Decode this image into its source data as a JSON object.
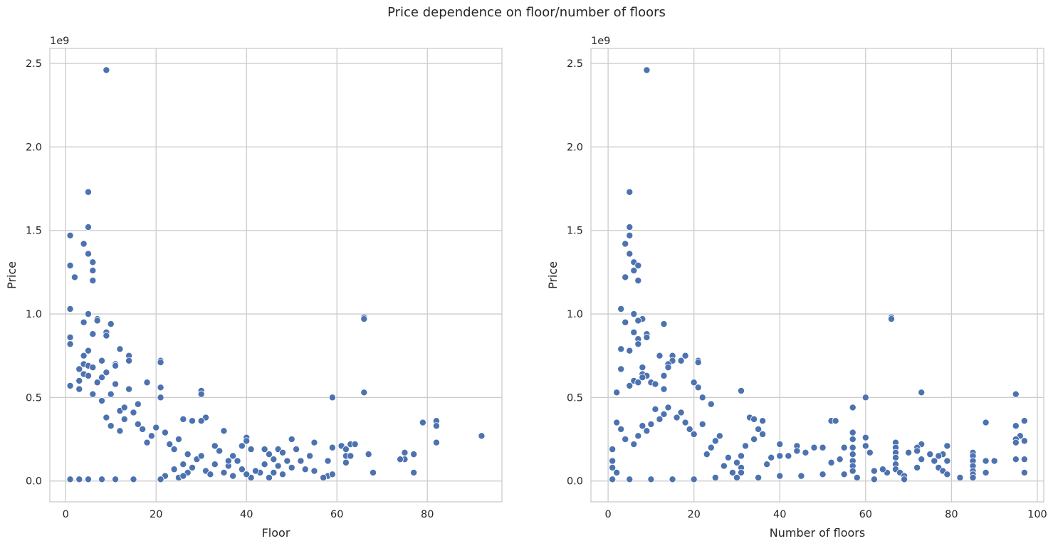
{
  "figure": {
    "title": "Price dependence on floor/number of floors"
  },
  "style": {
    "marker_color": "#4c72b0",
    "marker_edge": "#ffffff",
    "grid_color": "#cccccc",
    "axes_edge": "#cccccc"
  },
  "chart_data": [
    {
      "type": "scatter",
      "xlabel": "Floor",
      "ylabel": "Price",
      "y_offset_label": "1e9",
      "xlim": [
        -3.5,
        96.5
      ],
      "ylim": [
        -0.125,
        2.59
      ],
      "xticks": [
        0,
        20,
        40,
        60,
        80
      ],
      "xtick_labels": [
        "0",
        "20",
        "40",
        "60",
        "80"
      ],
      "yticks": [
        0,
        0.5,
        1.0,
        1.5,
        2.0,
        2.5
      ],
      "ytick_labels": [
        "0.0",
        "0.5",
        "1.0",
        "1.5",
        "2.0",
        "2.5"
      ],
      "grid": true,
      "points": [
        [
          9,
          2.46
        ],
        [
          5,
          1.73
        ],
        [
          5,
          1.52
        ],
        [
          1,
          1.47
        ],
        [
          4,
          1.42
        ],
        [
          5,
          1.36
        ],
        [
          6,
          1.31
        ],
        [
          1,
          1.29
        ],
        [
          6,
          1.26
        ],
        [
          2,
          1.22
        ],
        [
          6,
          1.2
        ],
        [
          1,
          1.03
        ],
        [
          5,
          1.0
        ],
        [
          7,
          0.97
        ],
        [
          7,
          0.96
        ],
        [
          4,
          0.95
        ],
        [
          10,
          0.94
        ],
        [
          9,
          0.89
        ],
        [
          6,
          0.88
        ],
        [
          1,
          0.86
        ],
        [
          9,
          0.87
        ],
        [
          1,
          0.82
        ],
        [
          12,
          0.79
        ],
        [
          5,
          0.78
        ],
        [
          4,
          0.75
        ],
        [
          14,
          0.75
        ],
        [
          14,
          0.72
        ],
        [
          21,
          0.72
        ],
        [
          21,
          0.71
        ],
        [
          8,
          0.72
        ],
        [
          4,
          0.7
        ],
        [
          11,
          0.7
        ],
        [
          11,
          0.69
        ],
        [
          5,
          0.69
        ],
        [
          6,
          0.68
        ],
        [
          3,
          0.67
        ],
        [
          4,
          0.64
        ],
        [
          9,
          0.65
        ],
        [
          5,
          0.63
        ],
        [
          8,
          0.62
        ],
        [
          3,
          0.6
        ],
        [
          7,
          0.59
        ],
        [
          18,
          0.59
        ],
        [
          1,
          0.57
        ],
        [
          11,
          0.58
        ],
        [
          14,
          0.55
        ],
        [
          21,
          0.56
        ],
        [
          30,
          0.54
        ],
        [
          30,
          0.52
        ],
        [
          3,
          0.55
        ],
        [
          6,
          0.52
        ],
        [
          10,
          0.52
        ],
        [
          21,
          0.5
        ],
        [
          59,
          0.5
        ],
        [
          66,
          0.98
        ],
        [
          66,
          0.97
        ],
        [
          66,
          0.53
        ],
        [
          8,
          0.48
        ],
        [
          12,
          0.42
        ],
        [
          16,
          0.46
        ],
        [
          13,
          0.44
        ],
        [
          15,
          0.41
        ],
        [
          31,
          0.38
        ],
        [
          26,
          0.37
        ],
        [
          28,
          0.36
        ],
        [
          30,
          0.36
        ],
        [
          79,
          0.35
        ],
        [
          82,
          0.36
        ],
        [
          82,
          0.33
        ],
        [
          35,
          0.3
        ],
        [
          92,
          0.27
        ],
        [
          40,
          0.26
        ],
        [
          40,
          0.24
        ],
        [
          50,
          0.25
        ],
        [
          55,
          0.23
        ],
        [
          82,
          0.23
        ],
        [
          63,
          0.22
        ],
        [
          64,
          0.22
        ],
        [
          61,
          0.21
        ],
        [
          59,
          0.2
        ],
        [
          62,
          0.19
        ],
        [
          47,
          0.19
        ],
        [
          44,
          0.19
        ],
        [
          39,
          0.21
        ],
        [
          41,
          0.19
        ],
        [
          51,
          0.19
        ],
        [
          75,
          0.17
        ],
        [
          75,
          0.13
        ],
        [
          77,
          0.16
        ],
        [
          67,
          0.16
        ],
        [
          62,
          0.15
        ],
        [
          63,
          0.15
        ],
        [
          54,
          0.15
        ],
        [
          45,
          0.16
        ],
        [
          48,
          0.17
        ],
        [
          46,
          0.13
        ],
        [
          52,
          0.12
        ],
        [
          58,
          0.12
        ],
        [
          74,
          0.13
        ],
        [
          62,
          0.11
        ],
        [
          68,
          0.05
        ],
        [
          77,
          0.05
        ],
        [
          58,
          0.03
        ],
        [
          59,
          0.04
        ],
        [
          55,
          0.06
        ],
        [
          53,
          0.07
        ],
        [
          50,
          0.08
        ],
        [
          47,
          0.09
        ],
        [
          44,
          0.1
        ],
        [
          49,
          0.12
        ],
        [
          57,
          0.02
        ],
        [
          43,
          0.05
        ],
        [
          46,
          0.05
        ],
        [
          48,
          0.04
        ],
        [
          41,
          0.02
        ],
        [
          45,
          0.02
        ],
        [
          40,
          0.04
        ],
        [
          42,
          0.06
        ],
        [
          36,
          0.09
        ],
        [
          38,
          0.12
        ],
        [
          37,
          0.15
        ],
        [
          34,
          0.18
        ],
        [
          33,
          0.21
        ],
        [
          25,
          0.25
        ],
        [
          23,
          0.22
        ],
        [
          24,
          0.19
        ],
        [
          22,
          0.29
        ],
        [
          20,
          0.32
        ],
        [
          19,
          0.27
        ],
        [
          18,
          0.23
        ],
        [
          16,
          0.34
        ],
        [
          17,
          0.31
        ],
        [
          13,
          0.37
        ],
        [
          12,
          0.3
        ],
        [
          10,
          0.33
        ],
        [
          9,
          0.38
        ],
        [
          27,
          0.16
        ],
        [
          29,
          0.13
        ],
        [
          26,
          0.1
        ],
        [
          28,
          0.08
        ],
        [
          31,
          0.06
        ],
        [
          32,
          0.04
        ],
        [
          35,
          0.05
        ],
        [
          37,
          0.03
        ],
        [
          39,
          0.07
        ],
        [
          33,
          0.1
        ],
        [
          36,
          0.12
        ],
        [
          30,
          0.15
        ],
        [
          27,
          0.05
        ],
        [
          25,
          0.02
        ],
        [
          22,
          0.03
        ],
        [
          21,
          0.01
        ],
        [
          15,
          0.01
        ],
        [
          11,
          0.01
        ],
        [
          8,
          0.01
        ],
        [
          5,
          0.01
        ],
        [
          3,
          0.01
        ],
        [
          1,
          0.01
        ],
        [
          24,
          0.07
        ],
        [
          26,
          0.03
        ]
      ]
    },
    {
      "type": "scatter",
      "xlabel": "Number of floors",
      "ylabel": "Price",
      "y_offset_label": "1e9",
      "xlim": [
        -4,
        101.5
      ],
      "ylim": [
        -0.125,
        2.59
      ],
      "xticks": [
        0,
        20,
        40,
        60,
        80,
        100
      ],
      "xtick_labels": [
        "0",
        "20",
        "40",
        "60",
        "80",
        "100"
      ],
      "yticks": [
        0,
        0.5,
        1.0,
        1.5,
        2.0,
        2.5
      ],
      "ytick_labels": [
        "0.0",
        "0.5",
        "1.0",
        "1.5",
        "2.0",
        "2.5"
      ],
      "grid": true,
      "points": [
        [
          9,
          2.46
        ],
        [
          5,
          1.73
        ],
        [
          5,
          1.52
        ],
        [
          5,
          1.47
        ],
        [
          4,
          1.42
        ],
        [
          5,
          1.36
        ],
        [
          6,
          1.31
        ],
        [
          7,
          1.29
        ],
        [
          6,
          1.26
        ],
        [
          4,
          1.22
        ],
        [
          7,
          1.2
        ],
        [
          3,
          1.03
        ],
        [
          6,
          1.0
        ],
        [
          8,
          0.97
        ],
        [
          7,
          0.96
        ],
        [
          4,
          0.95
        ],
        [
          13,
          0.94
        ],
        [
          6,
          0.89
        ],
        [
          9,
          0.88
        ],
        [
          9,
          0.86
        ],
        [
          7,
          0.85
        ],
        [
          7,
          0.82
        ],
        [
          3,
          0.79
        ],
        [
          5,
          0.78
        ],
        [
          12,
          0.75
        ],
        [
          15,
          0.75
        ],
        [
          15,
          0.72
        ],
        [
          21,
          0.72
        ],
        [
          21,
          0.71
        ],
        [
          18,
          0.75
        ],
        [
          17,
          0.72
        ],
        [
          14,
          0.7
        ],
        [
          14,
          0.68
        ],
        [
          10,
          0.59
        ],
        [
          8,
          0.68
        ],
        [
          3,
          0.67
        ],
        [
          8,
          0.64
        ],
        [
          9,
          0.63
        ],
        [
          13,
          0.63
        ],
        [
          8,
          0.62
        ],
        [
          6,
          0.6
        ],
        [
          7,
          0.59
        ],
        [
          20,
          0.59
        ],
        [
          5,
          0.57
        ],
        [
          11,
          0.58
        ],
        [
          13,
          0.55
        ],
        [
          21,
          0.56
        ],
        [
          31,
          0.54
        ],
        [
          2,
          0.53
        ],
        [
          73,
          0.53
        ],
        [
          95,
          0.52
        ],
        [
          60,
          0.5
        ],
        [
          66,
          0.98
        ],
        [
          66,
          0.97
        ],
        [
          22,
          0.5
        ],
        [
          24,
          0.46
        ],
        [
          57,
          0.44
        ],
        [
          33,
          0.38
        ],
        [
          34,
          0.37
        ],
        [
          36,
          0.36
        ],
        [
          52,
          0.36
        ],
        [
          53,
          0.36
        ],
        [
          97,
          0.36
        ],
        [
          88,
          0.35
        ],
        [
          95,
          0.33
        ],
        [
          96,
          0.27
        ],
        [
          95,
          0.25
        ],
        [
          95,
          0.23
        ],
        [
          97,
          0.24
        ],
        [
          97,
          0.13
        ],
        [
          97,
          0.05
        ],
        [
          95,
          0.13
        ],
        [
          90,
          0.12
        ],
        [
          88,
          0.12
        ],
        [
          88,
          0.05
        ],
        [
          85,
          0.17
        ],
        [
          85,
          0.15
        ],
        [
          85,
          0.12
        ],
        [
          85,
          0.09
        ],
        [
          85,
          0.06
        ],
        [
          85,
          0.04
        ],
        [
          85,
          0.02
        ],
        [
          82,
          0.02
        ],
        [
          79,
          0.21
        ],
        [
          78,
          0.16
        ],
        [
          79,
          0.12
        ],
        [
          77,
          0.15
        ],
        [
          75,
          0.16
        ],
        [
          76,
          0.12
        ],
        [
          77,
          0.08
        ],
        [
          78,
          0.06
        ],
        [
          79,
          0.04
        ],
        [
          73,
          0.22
        ],
        [
          72,
          0.2
        ],
        [
          72,
          0.18
        ],
        [
          73,
          0.13
        ],
        [
          72,
          0.08
        ],
        [
          70,
          0.17
        ],
        [
          67,
          0.23
        ],
        [
          67,
          0.2
        ],
        [
          67,
          0.17
        ],
        [
          67,
          0.14
        ],
        [
          67,
          0.1
        ],
        [
          67,
          0.07
        ],
        [
          68,
          0.05
        ],
        [
          69,
          0.03
        ],
        [
          69,
          0.01
        ],
        [
          65,
          0.05
        ],
        [
          64,
          0.07
        ],
        [
          62,
          0.01
        ],
        [
          61,
          0.17
        ],
        [
          60,
          0.26
        ],
        [
          60,
          0.21
        ],
        [
          57,
          0.29
        ],
        [
          57,
          0.25
        ],
        [
          57,
          0.2
        ],
        [
          57,
          0.16
        ],
        [
          57,
          0.12
        ],
        [
          57,
          0.09
        ],
        [
          57,
          0.06
        ],
        [
          55,
          0.2
        ],
        [
          54,
          0.13
        ],
        [
          52,
          0.11
        ],
        [
          50,
          0.2
        ],
        [
          48,
          0.2
        ],
        [
          46,
          0.17
        ],
        [
          44,
          0.21
        ],
        [
          44,
          0.18
        ],
        [
          42,
          0.15
        ],
        [
          40,
          0.22
        ],
        [
          40,
          0.15
        ],
        [
          38,
          0.14
        ],
        [
          37,
          0.1
        ],
        [
          36,
          0.28
        ],
        [
          35,
          0.31
        ],
        [
          34,
          0.25
        ],
        [
          32,
          0.21
        ],
        [
          31,
          0.15
        ],
        [
          31,
          0.08
        ],
        [
          31,
          0.05
        ],
        [
          30,
          0.11
        ],
        [
          28,
          0.14
        ],
        [
          27,
          0.09
        ],
        [
          26,
          0.27
        ],
        [
          25,
          0.24
        ],
        [
          24,
          0.2
        ],
        [
          23,
          0.16
        ],
        [
          22,
          0.34
        ],
        [
          20,
          0.28
        ],
        [
          19,
          0.31
        ],
        [
          18,
          0.35
        ],
        [
          17,
          0.41
        ],
        [
          16,
          0.38
        ],
        [
          14,
          0.44
        ],
        [
          13,
          0.4
        ],
        [
          11,
          0.43
        ],
        [
          12,
          0.37
        ],
        [
          10,
          0.34
        ],
        [
          9,
          0.3
        ],
        [
          8,
          0.33
        ],
        [
          7,
          0.27
        ],
        [
          6,
          0.22
        ],
        [
          4,
          0.25
        ],
        [
          3,
          0.31
        ],
        [
          2,
          0.35
        ],
        [
          1,
          0.19
        ],
        [
          1,
          0.12
        ],
        [
          1,
          0.08
        ],
        [
          2,
          0.05
        ],
        [
          1,
          0.01
        ],
        [
          5,
          0.01
        ],
        [
          10,
          0.01
        ],
        [
          15,
          0.01
        ],
        [
          20,
          0.01
        ],
        [
          25,
          0.02
        ],
        [
          30,
          0.02
        ],
        [
          35,
          0.02
        ],
        [
          40,
          0.03
        ],
        [
          45,
          0.03
        ],
        [
          50,
          0.04
        ],
        [
          55,
          0.04
        ],
        [
          58,
          0.02
        ],
        [
          62,
          0.06
        ],
        [
          29,
          0.05
        ]
      ]
    }
  ]
}
